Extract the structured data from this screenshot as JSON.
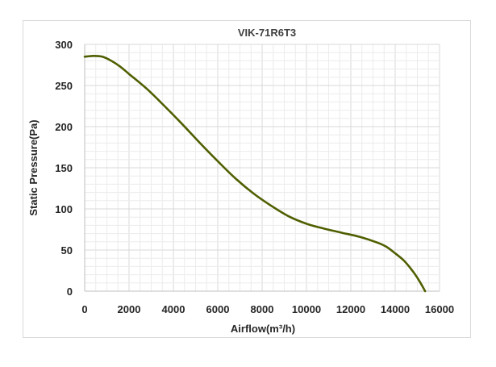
{
  "chart_data": {
    "type": "line",
    "title": "VIK-71R6T3",
    "xlabel": "Airflow(m³/h)",
    "ylabel": "Static Pressure(Pa)",
    "xlim": [
      0,
      16000
    ],
    "ylim": [
      0,
      300
    ],
    "x_ticks": [
      "0",
      "2000",
      "4000",
      "6000",
      "8000",
      "10000",
      "12000",
      "14000",
      "16000"
    ],
    "y_ticks": [
      "0",
      "50",
      "100",
      "150",
      "200",
      "250",
      "300"
    ],
    "grid": true,
    "colors": {
      "line": "#4f5f00"
    },
    "series": [
      {
        "name": "VIK-71R6T3",
        "x": [
          0,
          400,
          800,
          1200,
          1600,
          2000,
          2800,
          3600,
          4400,
          5200,
          6000,
          6800,
          7600,
          8400,
          9200,
          10000,
          10800,
          11600,
          12400,
          13200,
          13600,
          14000,
          14400,
          14800,
          15100,
          15350
        ],
        "y": [
          285,
          286,
          285,
          280,
          273,
          264,
          246,
          225,
          203,
          180,
          158,
          137,
          119,
          104,
          91,
          82,
          76,
          71,
          66,
          59,
          54,
          46,
          37,
          24,
          12,
          0
        ]
      }
    ]
  }
}
